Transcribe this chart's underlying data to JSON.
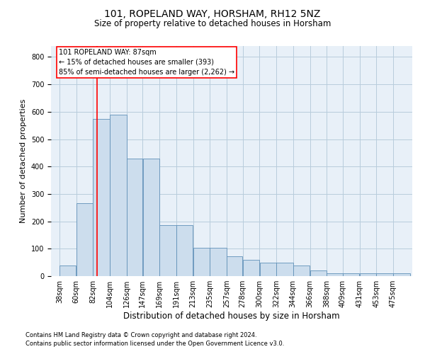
{
  "title": "101, ROPELAND WAY, HORSHAM, RH12 5NZ",
  "subtitle": "Size of property relative to detached houses in Horsham",
  "xlabel": "Distribution of detached houses by size in Horsham",
  "ylabel": "Number of detached properties",
  "footnote1": "Contains HM Land Registry data © Crown copyright and database right 2024.",
  "footnote2": "Contains public sector information licensed under the Open Government Licence v3.0.",
  "bar_color": "#ccdded",
  "bar_edge_color": "#6090b8",
  "grid_color": "#b8ccdc",
  "bg_color": "#e8f0f8",
  "red_line_x": 87,
  "annotation_line1": "101 ROPELAND WAY: 87sqm",
  "annotation_line2": "← 15% of detached houses are smaller (393)",
  "annotation_line3": "85% of semi-detached houses are larger (2,262) →",
  "categories": [
    "38sqm",
    "60sqm",
    "82sqm",
    "104sqm",
    "126sqm",
    "147sqm",
    "169sqm",
    "191sqm",
    "213sqm",
    "235sqm",
    "257sqm",
    "278sqm",
    "300sqm",
    "322sqm",
    "344sqm",
    "366sqm",
    "388sqm",
    "409sqm",
    "431sqm",
    "453sqm",
    "475sqm"
  ],
  "bin_lefts": [
    38,
    60,
    82,
    104,
    126,
    147,
    169,
    191,
    213,
    235,
    257,
    278,
    300,
    322,
    344,
    366,
    388,
    409,
    431,
    453,
    475
  ],
  "values": [
    40,
    265,
    575,
    590,
    430,
    430,
    185,
    185,
    103,
    103,
    72,
    60,
    48,
    48,
    40,
    20,
    10,
    10,
    10,
    10,
    10
  ],
  "ylim": [
    0,
    840
  ],
  "yticks": [
    0,
    100,
    200,
    300,
    400,
    500,
    600,
    700,
    800
  ],
  "xlim_left": 27,
  "xlim_right": 500,
  "title_fontsize": 10,
  "subtitle_fontsize": 8.5,
  "ylabel_fontsize": 8,
  "xlabel_fontsize": 8.5,
  "tick_fontsize": 7,
  "annot_fontsize": 7,
  "footnote_fontsize": 6
}
